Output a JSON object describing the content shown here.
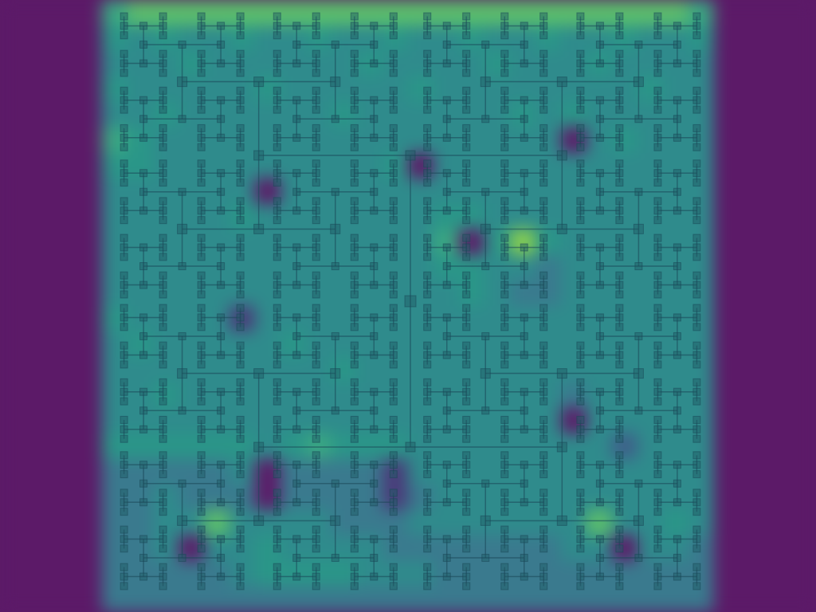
{
  "chart_data": {
    "type": "heatmap",
    "zlim": [
      0,
      9
    ],
    "tick_labels": false,
    "cells": [
      [
        0,
        0,
        0,
        0,
        6,
        7,
        7,
        7,
        7,
        7,
        7,
        7,
        7,
        7,
        7,
        7,
        7,
        7,
        7,
        7,
        7,
        7,
        7,
        7,
        7,
        7,
        7,
        6,
        0,
        0,
        0,
        0
      ],
      [
        0,
        0,
        0,
        0,
        5,
        4,
        5,
        4,
        4,
        5,
        4,
        4,
        5,
        4,
        4,
        5,
        4,
        4,
        5,
        4,
        4,
        5,
        4,
        4,
        5,
        4,
        4,
        5,
        0,
        0,
        0,
        0
      ],
      [
        0,
        0,
        0,
        0,
        4,
        4,
        4,
        5,
        4,
        4,
        4,
        4,
        4,
        4,
        5,
        4,
        4,
        4,
        4,
        5,
        4,
        4,
        4,
        5,
        4,
        4,
        4,
        4,
        0,
        0,
        0,
        0
      ],
      [
        0,
        0,
        0,
        0,
        5,
        4,
        4,
        4,
        4,
        4,
        5,
        4,
        4,
        4,
        4,
        4,
        5,
        4,
        4,
        4,
        4,
        4,
        4,
        4,
        4,
        5,
        4,
        4,
        0,
        0,
        0,
        0
      ],
      [
        0,
        0,
        0,
        0,
        4,
        4,
        5,
        4,
        4,
        4,
        4,
        4,
        4,
        5,
        4,
        4,
        4,
        4,
        4,
        4,
        5,
        4,
        5,
        4,
        4,
        4,
        4,
        4,
        0,
        0,
        0,
        0
      ],
      [
        0,
        0,
        0,
        0,
        6,
        5,
        4,
        4,
        4,
        4,
        4,
        4,
        4,
        4,
        4,
        4,
        4,
        4,
        4,
        4,
        4,
        4,
        0,
        4,
        5,
        4,
        4,
        4,
        0,
        0,
        0,
        0
      ],
      [
        0,
        0,
        0,
        0,
        5,
        5,
        4,
        4,
        4,
        4,
        4,
        4,
        4,
        4,
        4,
        5,
        0,
        4,
        4,
        4,
        4,
        4,
        4,
        4,
        4,
        4,
        4,
        4,
        0,
        0,
        0,
        0
      ],
      [
        0,
        0,
        0,
        0,
        4,
        4,
        4,
        4,
        4,
        4,
        0,
        4,
        4,
        4,
        4,
        4,
        4,
        4,
        4,
        4,
        4,
        4,
        4,
        4,
        4,
        4,
        4,
        4,
        0,
        0,
        0,
        0
      ],
      [
        0,
        0,
        0,
        0,
        4,
        4,
        4,
        4,
        4,
        5,
        4,
        4,
        4,
        4,
        4,
        4,
        4,
        5,
        5,
        4,
        4,
        4,
        4,
        4,
        4,
        4,
        4,
        4,
        0,
        0,
        0,
        0
      ],
      [
        0,
        0,
        0,
        0,
        4,
        4,
        4,
        4,
        4,
        4,
        4,
        4,
        4,
        4,
        4,
        4,
        4,
        6,
        0,
        5,
        8,
        5,
        4,
        4,
        4,
        4,
        4,
        4,
        0,
        0,
        0,
        0
      ],
      [
        0,
        0,
        0,
        0,
        4,
        4,
        4,
        4,
        4,
        4,
        4,
        4,
        4,
        4,
        4,
        4,
        4,
        5,
        5,
        4,
        4,
        3,
        4,
        4,
        4,
        4,
        4,
        4,
        0,
        0,
        0,
        0
      ],
      [
        0,
        0,
        0,
        0,
        4,
        4,
        4,
        4,
        4,
        4,
        4,
        4,
        4,
        4,
        4,
        4,
        4,
        4,
        5,
        4,
        3,
        3,
        4,
        4,
        4,
        4,
        4,
        4,
        0,
        0,
        0,
        0
      ],
      [
        0,
        0,
        0,
        0,
        5,
        4,
        4,
        4,
        4,
        1,
        4,
        4,
        4,
        4,
        4,
        4,
        4,
        4,
        4,
        4,
        4,
        4,
        4,
        4,
        4,
        4,
        4,
        4,
        0,
        0,
        0,
        0
      ],
      [
        0,
        0,
        0,
        0,
        4,
        5,
        4,
        4,
        4,
        4,
        4,
        5,
        4,
        4,
        4,
        4,
        4,
        4,
        4,
        4,
        4,
        4,
        4,
        4,
        4,
        4,
        4,
        4,
        0,
        0,
        0,
        0
      ],
      [
        0,
        0,
        0,
        0,
        4,
        4,
        4,
        4,
        4,
        4,
        4,
        4,
        4,
        5,
        4,
        4,
        4,
        4,
        4,
        4,
        4,
        4,
        4,
        4,
        4,
        4,
        4,
        4,
        0,
        0,
        0,
        0
      ],
      [
        0,
        0,
        0,
        0,
        4,
        4,
        5,
        4,
        4,
        4,
        4,
        4,
        4,
        4,
        4,
        4,
        4,
        4,
        4,
        4,
        4,
        4,
        3,
        4,
        4,
        4,
        4,
        4,
        0,
        0,
        0,
        0
      ],
      [
        0,
        0,
        0,
        0,
        4,
        4,
        4,
        4,
        4,
        4,
        4,
        4,
        4,
        4,
        4,
        4,
        4,
        4,
        4,
        4,
        4,
        4,
        0,
        4,
        4,
        4,
        4,
        4,
        0,
        0,
        0,
        0
      ],
      [
        0,
        0,
        0,
        0,
        5,
        5,
        5,
        5,
        5,
        5,
        4,
        5,
        6,
        5,
        5,
        5,
        4,
        4,
        4,
        4,
        4,
        4,
        4,
        4,
        2,
        4,
        4,
        4,
        0,
        0,
        0,
        0
      ],
      [
        0,
        0,
        0,
        0,
        3,
        3,
        3,
        3,
        3,
        4,
        0,
        3,
        3,
        3,
        3,
        1,
        4,
        4,
        4,
        4,
        4,
        4,
        4,
        4,
        4,
        4,
        4,
        4,
        0,
        0,
        0,
        0
      ],
      [
        0,
        0,
        0,
        0,
        3,
        3,
        4,
        3,
        3,
        3,
        0,
        3,
        3,
        3,
        3,
        1,
        3,
        4,
        4,
        4,
        4,
        4,
        4,
        4,
        4,
        4,
        4,
        4,
        0,
        0,
        0,
        0
      ],
      [
        0,
        0,
        0,
        0,
        3,
        3,
        4,
        4,
        7,
        4,
        4,
        4,
        4,
        3,
        3,
        3,
        4,
        4,
        4,
        4,
        4,
        4,
        4,
        7,
        4,
        4,
        5,
        4,
        0,
        0,
        0,
        0
      ],
      [
        0,
        0,
        0,
        0,
        3,
        3,
        4,
        0,
        4,
        4,
        5,
        4,
        4,
        4,
        4,
        3,
        3,
        3,
        3,
        3,
        3,
        3,
        4,
        4,
        0,
        4,
        4,
        3,
        0,
        0,
        0,
        0
      ],
      [
        0,
        0,
        0,
        0,
        3,
        3,
        3,
        3,
        3,
        4,
        5,
        5,
        5,
        5,
        4,
        4,
        4,
        3,
        3,
        3,
        3,
        3,
        3,
        3,
        3,
        3,
        3,
        3,
        0,
        0,
        0,
        0
      ],
      [
        0,
        0,
        0,
        0,
        3,
        3,
        3,
        3,
        3,
        3,
        3,
        3,
        3,
        3,
        3,
        3,
        3,
        3,
        3,
        3,
        3,
        3,
        3,
        3,
        3,
        3,
        3,
        3,
        0,
        0,
        0,
        0
      ]
    ]
  }
}
